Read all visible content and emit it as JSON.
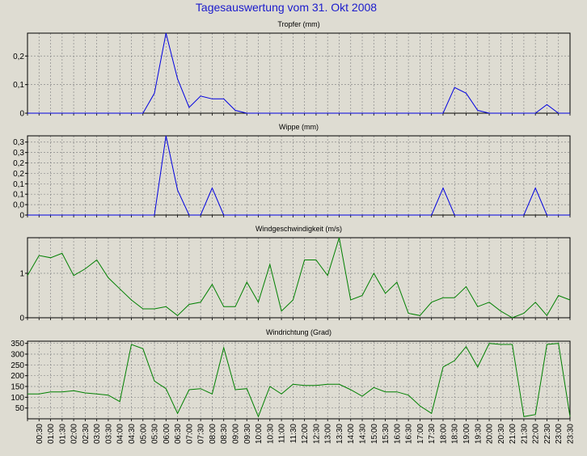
{
  "title": "Tagesauswertung vom 31. Okt 2008",
  "colors": {
    "background": "#dedcd2",
    "title": "#1a1acc",
    "series_blue": "#0000e0",
    "series_green": "#008000",
    "grid": "#8a8a8a",
    "axis": "#000000"
  },
  "x_tick_labels": [
    "00:30",
    "01:00",
    "01:30",
    "02:00",
    "02:30",
    "03:00",
    "03:30",
    "04:00",
    "04:30",
    "05:00",
    "05:30",
    "06:00",
    "06:30",
    "07:00",
    "07:30",
    "08:00",
    "08:30",
    "09:00",
    "09:30",
    "10:00",
    "10:30",
    "11:00",
    "11:30",
    "12:00",
    "12:30",
    "13:00",
    "13:30",
    "14:00",
    "14:30",
    "15:00",
    "15:30",
    "16:00",
    "16:30",
    "17:00",
    "17:30",
    "18:00",
    "18:30",
    "19:00",
    "19:30",
    "20:00",
    "20:30",
    "21:00",
    "21:30",
    "22:00",
    "22:30",
    "23:00",
    "23:30"
  ],
  "chart_data": [
    {
      "type": "line",
      "title": "Tropfer (mm)",
      "ylim": [
        0,
        0.28
      ],
      "y_ticks": [
        0,
        0.1,
        0.2
      ],
      "y_tick_labels": [
        "0",
        "0,1",
        "0,2"
      ],
      "grid": true,
      "x": [
        "00:00",
        "00:30",
        "01:00",
        "01:30",
        "02:00",
        "02:30",
        "03:00",
        "03:30",
        "04:00",
        "04:30",
        "05:00",
        "05:30",
        "06:00",
        "06:30",
        "07:00",
        "07:30",
        "08:00",
        "08:30",
        "09:00",
        "09:30",
        "10:00",
        "10:30",
        "11:00",
        "11:30",
        "12:00",
        "12:30",
        "13:00",
        "13:30",
        "14:00",
        "14:30",
        "15:00",
        "15:30",
        "16:00",
        "16:30",
        "17:00",
        "17:30",
        "18:00",
        "18:30",
        "19:00",
        "19:30",
        "20:00",
        "20:30",
        "21:00",
        "21:30",
        "22:00",
        "22:30",
        "23:00",
        "23:30"
      ],
      "series": [
        {
          "color": "#0000e0",
          "values": [
            0,
            0,
            0,
            0,
            0,
            0,
            0,
            0,
            0,
            0,
            0,
            0.07,
            0.28,
            0.12,
            0.02,
            0.06,
            0.05,
            0.05,
            0.01,
            0,
            0,
            0,
            0,
            0,
            0,
            0,
            0,
            0,
            0,
            0,
            0,
            0,
            0,
            0,
            0,
            0,
            0,
            0.09,
            0.07,
            0.01,
            0,
            0,
            0,
            0,
            0,
            0.03,
            0,
            0
          ]
        }
      ]
    },
    {
      "type": "line",
      "title": "Wippe (mm)",
      "ylim": [
        0,
        0.38
      ],
      "y_ticks": [
        0,
        0.05,
        0.1,
        0.15,
        0.2,
        0.25,
        0.3,
        0.35
      ],
      "y_tick_labels": [
        "0",
        "0,0",
        "0,1",
        "0,1",
        "0,2",
        "0,2",
        "0,3",
        "0,3"
      ],
      "grid": true,
      "x": [
        "00:00",
        "00:30",
        "01:00",
        "01:30",
        "02:00",
        "02:30",
        "03:00",
        "03:30",
        "04:00",
        "04:30",
        "05:00",
        "05:30",
        "06:00",
        "06:30",
        "07:00",
        "07:30",
        "08:00",
        "08:30",
        "09:00",
        "09:30",
        "10:00",
        "10:30",
        "11:00",
        "11:30",
        "12:00",
        "12:30",
        "13:00",
        "13:30",
        "14:00",
        "14:30",
        "15:00",
        "15:30",
        "16:00",
        "16:30",
        "17:00",
        "17:30",
        "18:00",
        "18:30",
        "19:00",
        "19:30",
        "20:00",
        "20:30",
        "21:00",
        "21:30",
        "22:00",
        "22:30",
        "23:00",
        "23:30"
      ],
      "series": [
        {
          "color": "#0000e0",
          "values": [
            0,
            0,
            0,
            0,
            0,
            0,
            0,
            0,
            0,
            0,
            0,
            0,
            0.38,
            0.12,
            0,
            0,
            0.13,
            0,
            0,
            0,
            0,
            0,
            0,
            0,
            0,
            0,
            0,
            0,
            0,
            0,
            0,
            0,
            0,
            0,
            0,
            0,
            0.13,
            0,
            0,
            0,
            0,
            0,
            0,
            0,
            0.13,
            0,
            0,
            0
          ]
        }
      ]
    },
    {
      "type": "line",
      "title": "Windgeschwindigkeit (m/s)",
      "ylim": [
        0,
        1.8
      ],
      "y_ticks": [
        0,
        1
      ],
      "y_tick_labels": [
        "0",
        "1"
      ],
      "grid": true,
      "x": [
        "00:00",
        "00:30",
        "01:00",
        "01:30",
        "02:00",
        "02:30",
        "03:00",
        "03:30",
        "04:00",
        "04:30",
        "05:00",
        "05:30",
        "06:00",
        "06:30",
        "07:00",
        "07:30",
        "08:00",
        "08:30",
        "09:00",
        "09:30",
        "10:00",
        "10:30",
        "11:00",
        "11:30",
        "12:00",
        "12:30",
        "13:00",
        "13:30",
        "14:00",
        "14:30",
        "15:00",
        "15:30",
        "16:00",
        "16:30",
        "17:00",
        "17:30",
        "18:00",
        "18:30",
        "19:00",
        "19:30",
        "20:00",
        "20:30",
        "21:00",
        "21:30",
        "22:00",
        "22:30",
        "23:00",
        "23:30"
      ],
      "series": [
        {
          "color": "#008000",
          "values": [
            0.95,
            1.4,
            1.35,
            1.45,
            0.95,
            1.1,
            1.3,
            0.9,
            0.65,
            0.4,
            0.2,
            0.2,
            0.25,
            0.05,
            0.3,
            0.35,
            0.75,
            0.25,
            0.25,
            0.8,
            0.35,
            1.2,
            0.15,
            0.4,
            1.3,
            1.3,
            0.95,
            1.8,
            0.4,
            0.5,
            1.0,
            0.55,
            0.8,
            0.1,
            0.05,
            0.35,
            0.45,
            0.45,
            0.7,
            0.25,
            0.35,
            0.15,
            0.0,
            0.1,
            0.35,
            0.05,
            0.5,
            0.4
          ]
        }
      ]
    },
    {
      "type": "line",
      "title": "Windrichtung (Grad)",
      "ylim": [
        0,
        360
      ],
      "y_ticks": [
        50,
        100,
        150,
        200,
        250,
        300,
        350
      ],
      "y_tick_labels": [
        "50",
        "100",
        "150",
        "200",
        "250",
        "300",
        "350"
      ],
      "grid": true,
      "x": [
        "00:00",
        "00:30",
        "01:00",
        "01:30",
        "02:00",
        "02:30",
        "03:00",
        "03:30",
        "04:00",
        "04:30",
        "05:00",
        "05:30",
        "06:00",
        "06:30",
        "07:00",
        "07:30",
        "08:00",
        "08:30",
        "09:00",
        "09:30",
        "10:00",
        "10:30",
        "11:00",
        "11:30",
        "12:00",
        "12:30",
        "13:00",
        "13:30",
        "14:00",
        "14:30",
        "15:00",
        "15:30",
        "16:00",
        "16:30",
        "17:00",
        "17:30",
        "18:00",
        "18:30",
        "19:00",
        "19:30",
        "20:00",
        "20:30",
        "21:00",
        "21:30",
        "22:00",
        "22:30",
        "23:00",
        "23:30"
      ],
      "series": [
        {
          "color": "#008000",
          "values": [
            115,
            115,
            125,
            125,
            130,
            120,
            115,
            110,
            80,
            345,
            325,
            175,
            140,
            25,
            135,
            140,
            115,
            330,
            135,
            140,
            10,
            150,
            115,
            160,
            155,
            155,
            160,
            160,
            135,
            105,
            145,
            125,
            125,
            110,
            60,
            25,
            240,
            270,
            335,
            240,
            350,
            345,
            345,
            10,
            20,
            345,
            350,
            10
          ]
        }
      ]
    }
  ]
}
